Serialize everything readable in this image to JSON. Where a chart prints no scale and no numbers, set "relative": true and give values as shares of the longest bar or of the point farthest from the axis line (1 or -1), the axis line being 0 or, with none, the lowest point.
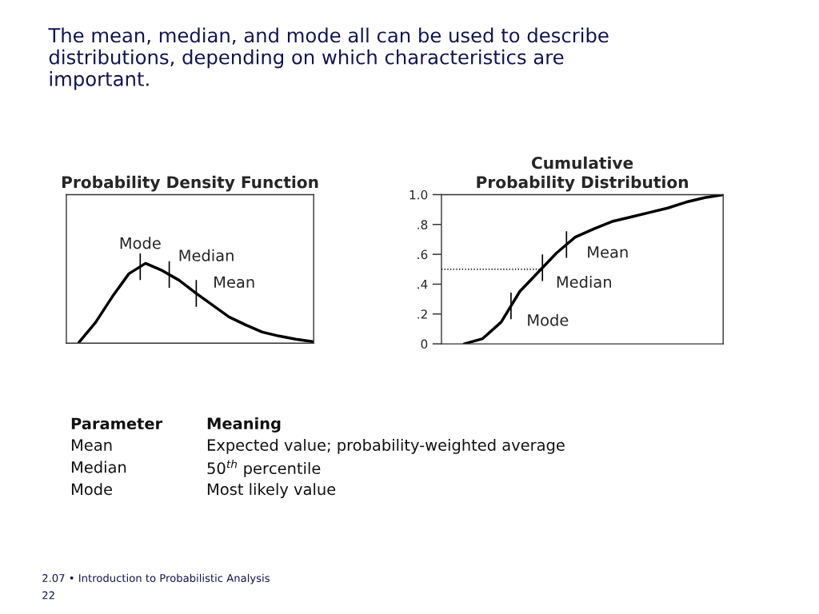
{
  "chart_data": [
    {
      "type": "other",
      "title": "The mean, median, and mode all can be used to describe\ndistributions, depending on which characteristics are\nimportant.",
      "annotations": [
        "Parameter",
        "Meaning",
        "Mean",
        "Expected value; probability-weighted average",
        "Median",
        "50$^{th}$ percentile",
        "Mode",
        "Most likely value",
        "2.07 • Introduction to Probabilistic Analysis",
        "22"
      ]
    },
    {
      "type": "line",
      "title": "Probability Density Function",
      "relative": true,
      "tick_labels": false,
      "categories": [
        null,
        null,
        null,
        null,
        null,
        null,
        null,
        null,
        null,
        null,
        null,
        null,
        null,
        null,
        null
      ],
      "series": [
        {
          "color": "#000000",
          "values": [
            0.01,
            0.26,
            0.58,
            0.87,
            1.0,
            0.91,
            0.79,
            0.63,
            0.48,
            0.33,
            0.23,
            0.14,
            0.09,
            0.05,
            0.02
          ]
        }
      ],
      "annotations": [
        "Mode",
        "Median",
        "Mean"
      ]
    },
    {
      "type": "line",
      "title": "Cumulative\nProbability Distribution",
      "tick_labels": "y",
      "categories": [
        null,
        null,
        null,
        null,
        null,
        null,
        null,
        null,
        null,
        null,
        null,
        null,
        null,
        null,
        null
      ],
      "series": [
        {
          "color": "#000000",
          "values": [
            0.0,
            0.035,
            0.146,
            0.35,
            0.48,
            0.61,
            0.715,
            0.77,
            0.82,
            0.85,
            0.88,
            0.91,
            0.95,
            0.98,
            1.0
          ]
        }
      ],
      "ylim": [
        0,
        1
      ],
      "yticks": [
        0,
        {
          "value": 0.2,
          "label": ".2"
        },
        {
          "value": 0.4,
          "label": ".4"
        },
        {
          "value": 0.6,
          "label": ".6"
        },
        {
          "value": 0.8,
          "label": ".8"
        },
        {
          "value": 1.0,
          "label": "1.0"
        }
      ],
      "ref_lines": [
        {
          "axis": "y",
          "value": 0.5,
          "line_style": "dotted"
        }
      ],
      "annotations": [
        "Mode",
        "Median",
        "Mean"
      ]
    }
  ]
}
